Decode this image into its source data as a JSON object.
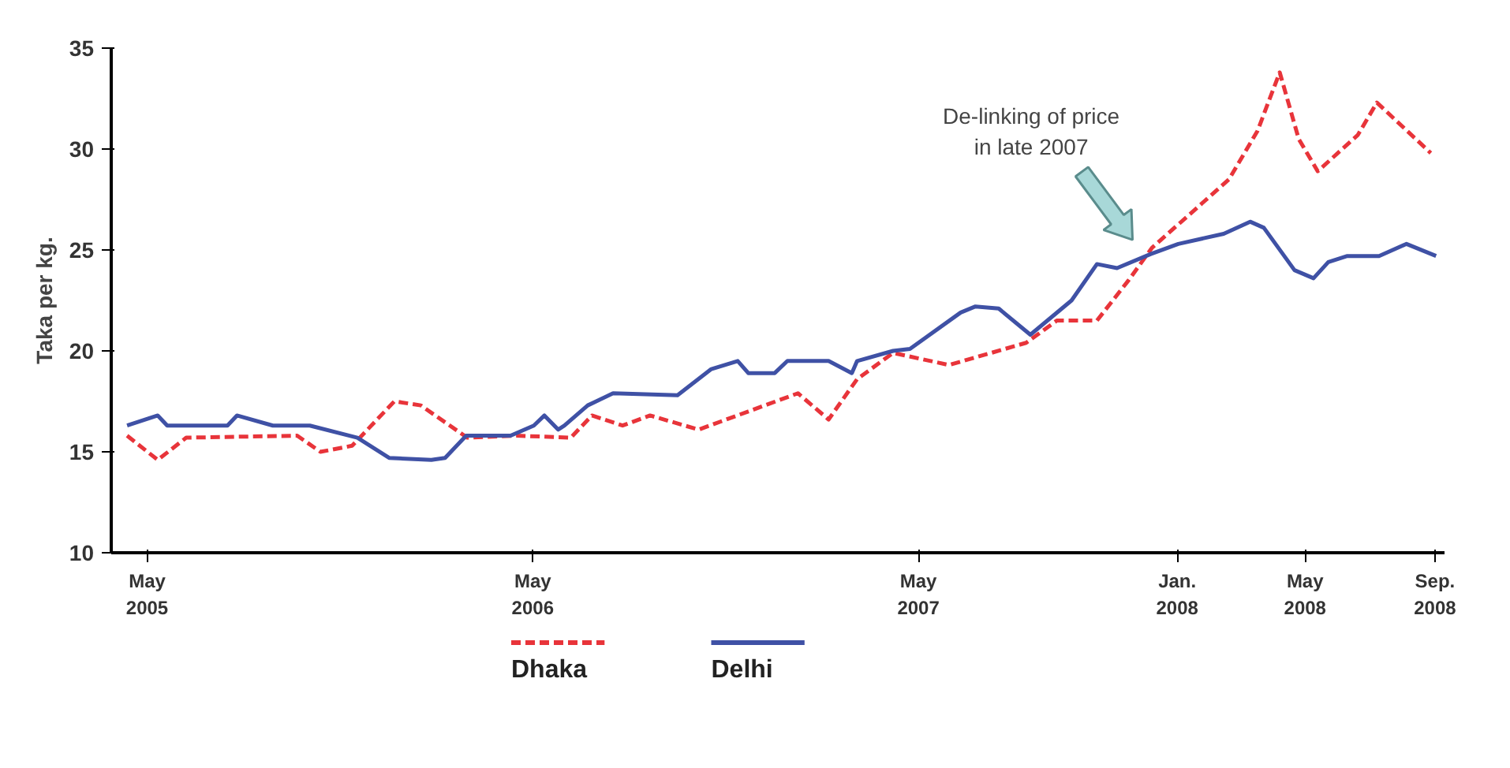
{
  "chart_data": {
    "type": "line",
    "ylabel": "Taka per kg.",
    "xlim": [
      "2005-03-28",
      "2008-09-10"
    ],
    "ylim": [
      10,
      35
    ],
    "yticks": [
      10,
      15,
      20,
      25,
      30,
      35
    ],
    "xticks": [
      {
        "value": "2005-05",
        "label": "May\n2005"
      },
      {
        "value": "2006-05",
        "label": "May\n2006"
      },
      {
        "value": "2007-05",
        "label": "May\n2007"
      },
      {
        "value": "2008-01",
        "label": "Jan.\n2008"
      },
      {
        "value": "2008-05",
        "label": "May\n2008"
      },
      {
        "value": "2008-09",
        "label": "Sep.\n2008"
      }
    ],
    "grid": false,
    "legend": "bottom",
    "marker": "none",
    "annotations": [
      "De-linking of price\nin late 2007"
    ],
    "series": [
      {
        "name": "Dhaka",
        "color": "#e8343a",
        "line_style": "dashed",
        "x": [
          "2005-04-12",
          "2005-05-11",
          "2005-06-07",
          "2005-09-20",
          "2005-10-12",
          "2005-11-11",
          "2005-12-21",
          "2006-01-15",
          "2006-02-28",
          "2006-04-16",
          "2006-06-06",
          "2006-06-26",
          "2006-07-25",
          "2006-08-20",
          "2006-10-05",
          "2006-11-21",
          "2007-01-07",
          "2007-02-05",
          "2007-03-04",
          "2007-04-07",
          "2007-05-30",
          "2007-08-11",
          "2007-09-09",
          "2007-10-17",
          "2007-11-16",
          "2007-12-08",
          "2008-02-19",
          "2008-03-17",
          "2008-04-07",
          "2008-04-25",
          "2008-05-13",
          "2008-06-20",
          "2008-07-08",
          "2008-08-28"
        ],
        "values": [
          15.8,
          14.6,
          15.7,
          15.8,
          15.0,
          15.3,
          17.5,
          17.3,
          15.7,
          15.8,
          15.7,
          16.8,
          16.3,
          16.8,
          16.1,
          17.0,
          17.9,
          16.6,
          18.6,
          19.9,
          19.3,
          20.4,
          21.5,
          21.5,
          23.5,
          25.1,
          28.5,
          30.9,
          33.8,
          30.5,
          28.9,
          30.7,
          32.3,
          29.8
        ]
      },
      {
        "name": "Delhi",
        "color": "#3f51a5",
        "line_style": "solid",
        "x": [
          "2005-04-12",
          "2005-05-11",
          "2005-05-20",
          "2005-07-16",
          "2005-07-25",
          "2005-08-28",
          "2005-10-02",
          "2005-11-16",
          "2005-12-16",
          "2006-01-25",
          "2006-02-07",
          "2006-02-27",
          "2006-04-10",
          "2006-05-02",
          "2006-05-12",
          "2006-05-25",
          "2006-05-31",
          "2006-06-22",
          "2006-07-16",
          "2006-09-15",
          "2006-10-17",
          "2006-11-11",
          "2006-11-21",
          "2006-12-16",
          "2006-12-28",
          "2007-02-05",
          "2007-02-27",
          "2007-03-04",
          "2007-04-07",
          "2007-04-23",
          "2007-06-10",
          "2007-06-24",
          "2007-07-16",
          "2007-08-15",
          "2007-09-23",
          "2007-10-17",
          "2007-11-05",
          "2007-12-07",
          "2008-01-02",
          "2008-02-14",
          "2008-03-10",
          "2008-03-23",
          "2008-04-21",
          "2008-05-09",
          "2008-05-23",
          "2008-06-10",
          "2008-07-10",
          "2008-08-05",
          "2008-09-02"
        ],
        "values": [
          16.3,
          16.8,
          16.3,
          16.3,
          16.8,
          16.3,
          16.3,
          15.7,
          14.7,
          14.6,
          14.7,
          15.8,
          15.8,
          16.3,
          16.8,
          16.1,
          16.3,
          17.3,
          17.9,
          17.8,
          19.1,
          19.5,
          18.9,
          18.9,
          19.5,
          19.5,
          18.9,
          19.5,
          20.0,
          20.1,
          21.9,
          22.2,
          22.1,
          20.8,
          22.5,
          24.3,
          24.1,
          24.8,
          25.3,
          25.8,
          26.4,
          26.1,
          24.0,
          23.6,
          24.4,
          24.7,
          24.7,
          25.3,
          24.7
        ]
      }
    ]
  }
}
